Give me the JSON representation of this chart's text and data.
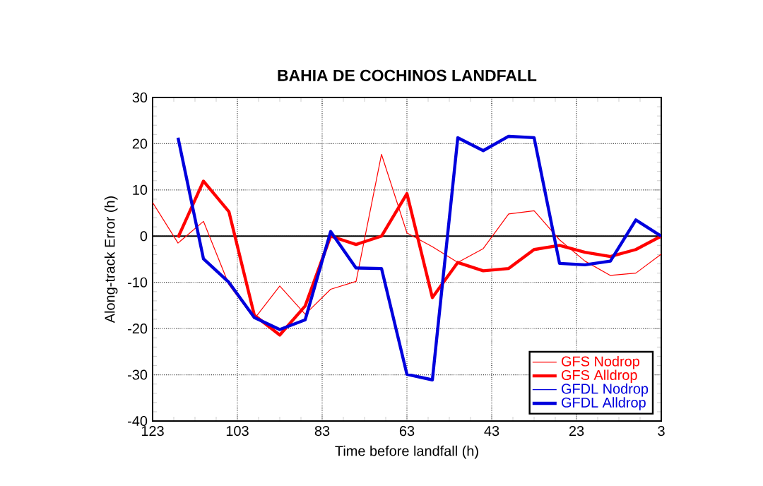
{
  "chart_data": {
    "type": "line",
    "title": "BAHIA DE COCHINOS LANDFALL",
    "xlabel": "Time before landfall (h)",
    "ylabel": "Along-track Error (h)",
    "x": [
      123,
      117,
      111,
      105,
      99,
      93,
      87,
      81,
      75,
      69,
      63,
      57,
      51,
      45,
      39,
      33,
      27,
      21,
      15,
      9,
      3
    ],
    "series": [
      {
        "name": "GFS Nodrop",
        "color": "#ff0000",
        "values": [
          7.3,
          -1.5,
          3.2,
          -10.5,
          -17.9,
          -10.8,
          -16.9,
          -11.5,
          -9.8,
          17.7,
          0.7,
          -2.3,
          -5.7,
          -2.7,
          4.8,
          5.5,
          -0.8,
          -5.4,
          -8.5,
          -8.0,
          -3.9
        ]
      },
      {
        "name": "GFS Alldrop",
        "color": "#ff0000",
        "values": [
          null,
          -0.3,
          11.9,
          5.3,
          -17.1,
          -21.4,
          -15.1,
          0,
          -1.8,
          0,
          9.2,
          -13.3,
          -5.7,
          -7.5,
          -7.0,
          -2.9,
          -2.0,
          -3.5,
          -4.4,
          -2.9,
          0
        ]
      },
      {
        "name": "GFDL Nodrop",
        "color": "#0000dd",
        "values": [
          null,
          null,
          null,
          null,
          null,
          null,
          null,
          null,
          null,
          null,
          null,
          null,
          null,
          null,
          null,
          null,
          null,
          null,
          null,
          null,
          null
        ]
      },
      {
        "name": "GFDL Alldrop",
        "color": "#0000dd",
        "values": [
          null,
          21.3,
          -4.9,
          -10,
          -17.6,
          -20.2,
          -18.1,
          1.0,
          -6.9,
          -7.0,
          -29.9,
          -31.1,
          21.3,
          18.5,
          21.6,
          21.3,
          -5.9,
          -6.2,
          -5.4,
          3.5,
          0
        ]
      }
    ],
    "xlim": [
      123,
      3
    ],
    "xticks": [
      123,
      103,
      83,
      63,
      43,
      23,
      3
    ],
    "ylim": [
      -40,
      30
    ],
    "yticks": [
      -40,
      -30,
      -20,
      -10,
      0,
      10,
      20,
      30
    ],
    "ref_lines": [
      {
        "axis": "y",
        "value": 0,
        "color": "#000000"
      }
    ],
    "grid": true,
    "legend": "bottom right",
    "marker": "none",
    "line_style": "solid"
  }
}
